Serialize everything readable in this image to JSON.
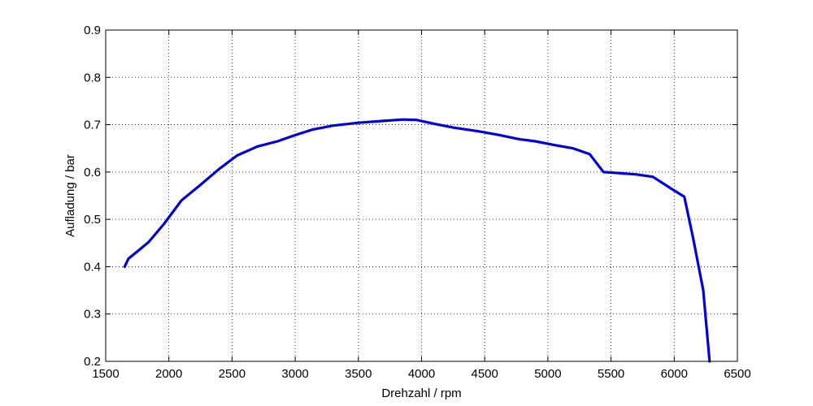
{
  "chart_data": {
    "type": "line",
    "xlabel": "Drehzahl / rpm",
    "ylabel": "Aufladung / bar",
    "xlim": [
      1500,
      6500
    ],
    "ylim": [
      0.2,
      0.9
    ],
    "xticks": [
      1500,
      2000,
      2500,
      3000,
      3500,
      4000,
      4500,
      5000,
      5500,
      6000,
      6500
    ],
    "yticks": [
      0.2,
      0.3,
      0.4,
      0.5,
      0.6,
      0.7,
      0.8,
      0.9
    ],
    "xtick_labels": [
      "1500",
      "2000",
      "2500",
      "3000",
      "3500",
      "4000",
      "4500",
      "5000",
      "5500",
      "6000",
      "6500"
    ],
    "ytick_labels": [
      "0.2",
      "0.3",
      "0.4",
      "0.5",
      "0.6",
      "0.7",
      "0.8",
      "0.9"
    ],
    "grid": true,
    "series": [
      {
        "color": "#0000dd",
        "x": [
          1650,
          1680,
          1750,
          1840,
          1960,
          2100,
          2250,
          2400,
          2540,
          2700,
          2860,
          3000,
          3140,
          3300,
          3500,
          3700,
          3850,
          3960,
          4100,
          4250,
          4450,
          4600,
          4780,
          4900,
          5050,
          5200,
          5330,
          5440,
          5600,
          5700,
          5830,
          6000,
          6080,
          6150,
          6230,
          6280
        ],
        "y": [
          0.4,
          0.417,
          0.432,
          0.452,
          0.49,
          0.54,
          0.573,
          0.607,
          0.635,
          0.654,
          0.665,
          0.678,
          0.69,
          0.698,
          0.704,
          0.708,
          0.711,
          0.71,
          0.702,
          0.694,
          0.686,
          0.679,
          0.669,
          0.665,
          0.657,
          0.65,
          0.638,
          0.6,
          0.597,
          0.595,
          0.59,
          0.561,
          0.548,
          0.46,
          0.35,
          0.2
        ]
      }
    ]
  }
}
